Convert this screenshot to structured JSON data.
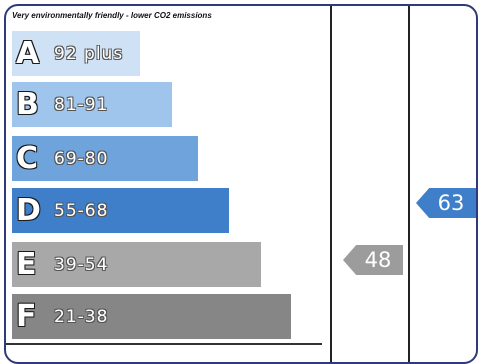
{
  "note": "Very environmentally friendly - lower CO2 emissions",
  "bands": [
    {
      "letter": "A",
      "range": "92 plus",
      "color": "#cfe2f5"
    },
    {
      "letter": "B",
      "range": "81-91",
      "color": "#9fc5ec"
    },
    {
      "letter": "C",
      "range": "69-80",
      "color": "#6fa3dc"
    },
    {
      "letter": "D",
      "range": "55-68",
      "color": "#3f7fc9"
    },
    {
      "letter": "E",
      "range": "39-54",
      "color": "#a8a8a8"
    },
    {
      "letter": "F",
      "range": "21-38",
      "color": "#868686"
    }
  ],
  "current": {
    "value": "48",
    "color": "#9c9c9c"
  },
  "potential": {
    "value": "63",
    "color": "#3f7fc9"
  }
}
